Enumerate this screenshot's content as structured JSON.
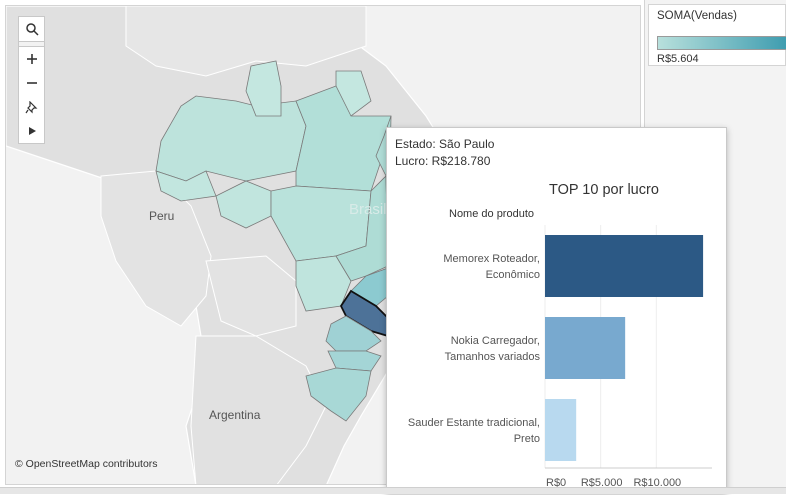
{
  "map": {
    "country_label": "Brasil",
    "peru_label": "Peru",
    "argentina_label": "Argentina",
    "credit": "© OpenStreetMap contributors",
    "toolbar": {
      "search_icon": "magnifier",
      "zoom_in_icon": "plus",
      "zoom_out_icon": "minus",
      "pin_icon": "pushpin",
      "play_icon": "play-arrow"
    }
  },
  "legend": {
    "title": "SOMA(Vendas)",
    "min_label": "R$5.604",
    "ramp_start_color": "#b8e0dc",
    "ramp_end_color": "#3f9db0"
  },
  "tooltip": {
    "state_line": "Estado: São Paulo",
    "profit_line": "Lucro: R$218.780"
  },
  "chart_data": {
    "type": "bar",
    "orientation": "horizontal",
    "title": "TOP 10 por lucro",
    "ylabel": "Nome do produto",
    "categories": [
      [
        "Memorex Roteador,",
        "Econômico"
      ],
      [
        "Nokia Carregador,",
        "Tamanhos variados"
      ],
      [
        "Sauder Estante tradicional,",
        "Preto"
      ]
    ],
    "values": [
      14200,
      7200,
      2800
    ],
    "colors": [
      "#2c5985",
      "#78a9cf",
      "#b8d9ef"
    ],
    "xlim": [
      0,
      15000
    ],
    "xticks": [
      0,
      5000,
      10000
    ],
    "xtick_labels": [
      "R$0",
      "R$5.000",
      "R$10.000"
    ]
  }
}
